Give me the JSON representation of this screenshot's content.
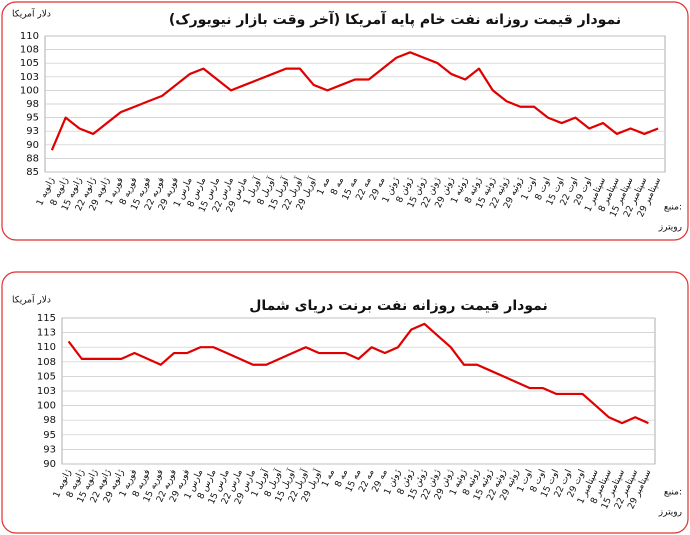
{
  "chart_data": [
    {
      "type": "line",
      "title": "نمودار قیمت روزانه نفت خام پایه آمریکا (آخر وقت بازار نیویورک)",
      "y_label": "دلار آمریکا",
      "source_label": "منبع:",
      "source": "رویترز",
      "categories": [
        "1 ژانویه",
        "8 ژانویه",
        "15 ژانویه",
        "22 ژانویه",
        "29 ژانویه",
        "1 فوریه",
        "8 فوریه",
        "15 فوریه",
        "22 فوریه",
        "29 فوریه",
        "1 مارس",
        "8 مارس",
        "15 مارس",
        "22 مارس",
        "29 مارس",
        "1 آوریل",
        "8 آوریل",
        "15 آوریل",
        "22 آوریل",
        "29 آوریل",
        "1 مه",
        "8 مه",
        "15 مه",
        "22 مه",
        "29 مه",
        "1 ژوئن",
        "8 ژوئن",
        "15 ژوئن",
        "22 ژوئن",
        "29 ژوئن",
        "1 ژوئیه",
        "8 ژوئیه",
        "15 ژوئیه",
        "22 ژوئیه",
        "29 ژوئیه",
        "1 اوت",
        "8 اوت",
        "15 اوت",
        "22 اوت",
        "29 اوت",
        "1 سپتامبر",
        "8 سپتامبر",
        "15 سپتامبر",
        "22 سپتامبر",
        "29 سپتامبر"
      ],
      "values": [
        89,
        95,
        93,
        92,
        94,
        96,
        97,
        98,
        99,
        101,
        103,
        104,
        102,
        100,
        101,
        102,
        103,
        104,
        104,
        101,
        100,
        101,
        102,
        102,
        104,
        106,
        107,
        106,
        105,
        103,
        102,
        104,
        100,
        98,
        97,
        97,
        95,
        94,
        95,
        93,
        94,
        92,
        93,
        92,
        93
      ],
      "color": "#e00000",
      "ylim": [
        85,
        110
      ],
      "yticks": [
        85,
        {
          "value": 87.5,
          "label": "88"
        },
        90,
        {
          "value": 92.5,
          "label": "93"
        },
        95,
        {
          "value": 97.5,
          "label": "98"
        },
        100,
        {
          "value": 102.5,
          "label": "103"
        },
        105,
        {
          "value": 107.5,
          "label": "108"
        },
        110
      ],
      "grid": true
    },
    {
      "type": "line",
      "title": "نمودار قیمت روزانه نفت برنت دریای شمال",
      "y_label": "دلار آمریکا",
      "source_label": "منبع:",
      "source": "رویترز",
      "categories": [
        "1 ژانویه",
        "8 ژانویه",
        "15 ژانویه",
        "22 ژانویه",
        "29 ژانویه",
        "1 فوریه",
        "8 فوریه",
        "15 فوریه",
        "22 فوریه",
        "29 فوریه",
        "1 مارس",
        "8 مارس",
        "15 مارس",
        "22 مارس",
        "29 مارس",
        "1 آوریل",
        "8 آوریل",
        "15 آوریل",
        "22 آوریل",
        "29 آوریل",
        "1 مه",
        "8 مه",
        "15 مه",
        "22 مه",
        "29 مه",
        "1 ژوئن",
        "8 ژوئن",
        "15 ژوئن",
        "22 ژوئن",
        "29 ژوئن",
        "1 ژوئیه",
        "8 ژوئیه",
        "15 ژوئیه",
        "22 ژوئیه",
        "29 ژوئیه",
        "1 اوت",
        "8 اوت",
        "15 اوت",
        "22 اوت",
        "29 اوت",
        "1 سپتامبر",
        "8 سپتامبر",
        "15 سپتامبر",
        "22 سپتامبر",
        "29 سپتامبر"
      ],
      "values": [
        111,
        108,
        108,
        108,
        108,
        109,
        108,
        107,
        109,
        109,
        110,
        110,
        109,
        108,
        107,
        107,
        108,
        109,
        110,
        109,
        109,
        109,
        108,
        110,
        109,
        110,
        113,
        114,
        112,
        110,
        107,
        107,
        106,
        105,
        104,
        103,
        103,
        102,
        102,
        102,
        100,
        98,
        97,
        98,
        97
      ],
      "color": "#e00000",
      "ylim": [
        90,
        115
      ],
      "yticks": [
        90,
        {
          "value": 92.5,
          "label": "93"
        },
        95,
        {
          "value": 97.5,
          "label": "98"
        },
        100,
        {
          "value": 102.5,
          "label": "103"
        },
        105,
        {
          "value": 107.5,
          "label": "108"
        },
        110,
        {
          "value": 112.5,
          "label": "113"
        },
        115
      ],
      "grid": true
    }
  ]
}
